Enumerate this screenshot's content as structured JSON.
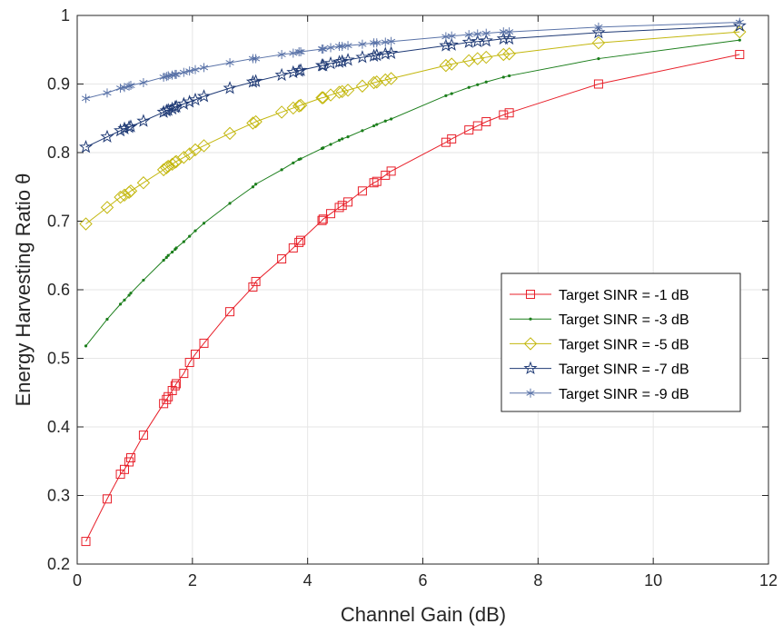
{
  "chart_data": {
    "type": "line",
    "xlabel": "Channel Gain (dB)",
    "ylabel": "Energy Harvesting Ratio θ",
    "xlim": [
      0,
      12
    ],
    "ylim": [
      0.2,
      1
    ],
    "xticks": [
      "0",
      "2",
      "4",
      "6",
      "8",
      "10",
      "12"
    ],
    "yticks": [
      "0.2",
      "0.3",
      "0.4",
      "0.5",
      "0.6",
      "0.7",
      "0.8",
      "0.9",
      "1"
    ],
    "grid": true,
    "legend_position": "right-middle",
    "x": [
      0.15,
      0.52,
      0.75,
      0.82,
      0.9,
      0.93,
      1.15,
      1.5,
      1.55,
      1.58,
      1.65,
      1.7,
      1.72,
      1.85,
      1.95,
      2.05,
      2.2,
      2.65,
      3.05,
      3.1,
      3.55,
      3.75,
      3.85,
      3.88,
      4.25,
      4.27,
      4.4,
      4.55,
      4.6,
      4.7,
      4.95,
      5.15,
      5.2,
      5.35,
      5.45,
      6.4,
      6.5,
      6.8,
      6.95,
      7.1,
      7.4,
      7.5,
      9.05,
      11.5
    ],
    "series": [
      {
        "name": "Target SINR = -1 dB",
        "color": "#e8202a",
        "marker": "square",
        "values": [
          0.233,
          0.295,
          0.331,
          0.338,
          0.349,
          0.355,
          0.388,
          0.434,
          0.44,
          0.444,
          0.453,
          0.46,
          0.463,
          0.478,
          0.494,
          0.506,
          0.522,
          0.568,
          0.604,
          0.612,
          0.645,
          0.661,
          0.669,
          0.672,
          0.701,
          0.703,
          0.711,
          0.72,
          0.723,
          0.728,
          0.744,
          0.756,
          0.758,
          0.767,
          0.773,
          0.815,
          0.82,
          0.833,
          0.839,
          0.845,
          0.855,
          0.858,
          0.9,
          0.943
        ]
      },
      {
        "name": "Target SINR = -3 dB",
        "color": "#1b7e1b",
        "marker": "dot",
        "values": [
          0.518,
          0.557,
          0.579,
          0.585,
          0.592,
          0.595,
          0.614,
          0.643,
          0.647,
          0.65,
          0.655,
          0.659,
          0.661,
          0.67,
          0.678,
          0.686,
          0.697,
          0.726,
          0.75,
          0.754,
          0.775,
          0.785,
          0.79,
          0.791,
          0.806,
          0.807,
          0.812,
          0.818,
          0.82,
          0.823,
          0.832,
          0.839,
          0.841,
          0.846,
          0.849,
          0.883,
          0.886,
          0.895,
          0.899,
          0.903,
          0.91,
          0.912,
          0.937,
          0.964
        ]
      },
      {
        "name": "Target SINR = -5 dB",
        "color": "#c3b70e",
        "marker": "diamond",
        "values": [
          0.696,
          0.72,
          0.735,
          0.738,
          0.742,
          0.744,
          0.756,
          0.775,
          0.778,
          0.78,
          0.783,
          0.786,
          0.787,
          0.793,
          0.798,
          0.804,
          0.81,
          0.828,
          0.843,
          0.845,
          0.859,
          0.865,
          0.868,
          0.869,
          0.88,
          0.88,
          0.884,
          0.888,
          0.889,
          0.891,
          0.897,
          0.902,
          0.903,
          0.906,
          0.908,
          0.927,
          0.929,
          0.934,
          0.937,
          0.939,
          0.943,
          0.944,
          0.96,
          0.976
        ]
      },
      {
        "name": "Target SINR = -7 dB",
        "color": "#1f3a75",
        "marker": "pentagram",
        "values": [
          0.808,
          0.823,
          0.832,
          0.835,
          0.837,
          0.838,
          0.846,
          0.859,
          0.861,
          0.862,
          0.864,
          0.866,
          0.867,
          0.871,
          0.874,
          0.877,
          0.882,
          0.894,
          0.903,
          0.904,
          0.913,
          0.917,
          0.919,
          0.92,
          0.927,
          0.927,
          0.93,
          0.932,
          0.933,
          0.935,
          0.939,
          0.941,
          0.942,
          0.944,
          0.945,
          0.956,
          0.957,
          0.961,
          0.962,
          0.963,
          0.966,
          0.966,
          0.975,
          0.985
        ]
      },
      {
        "name": "Target SINR = -9 dB",
        "color": "#5a73a8",
        "marker": "asterisk",
        "values": [
          0.879,
          0.887,
          0.894,
          0.895,
          0.897,
          0.898,
          0.902,
          0.91,
          0.911,
          0.912,
          0.913,
          0.914,
          0.914,
          0.917,
          0.919,
          0.921,
          0.924,
          0.931,
          0.937,
          0.937,
          0.943,
          0.945,
          0.947,
          0.947,
          0.951,
          0.951,
          0.953,
          0.955,
          0.955,
          0.956,
          0.958,
          0.96,
          0.96,
          0.961,
          0.962,
          0.969,
          0.97,
          0.972,
          0.973,
          0.974,
          0.976,
          0.976,
          0.983,
          0.99
        ]
      }
    ]
  }
}
